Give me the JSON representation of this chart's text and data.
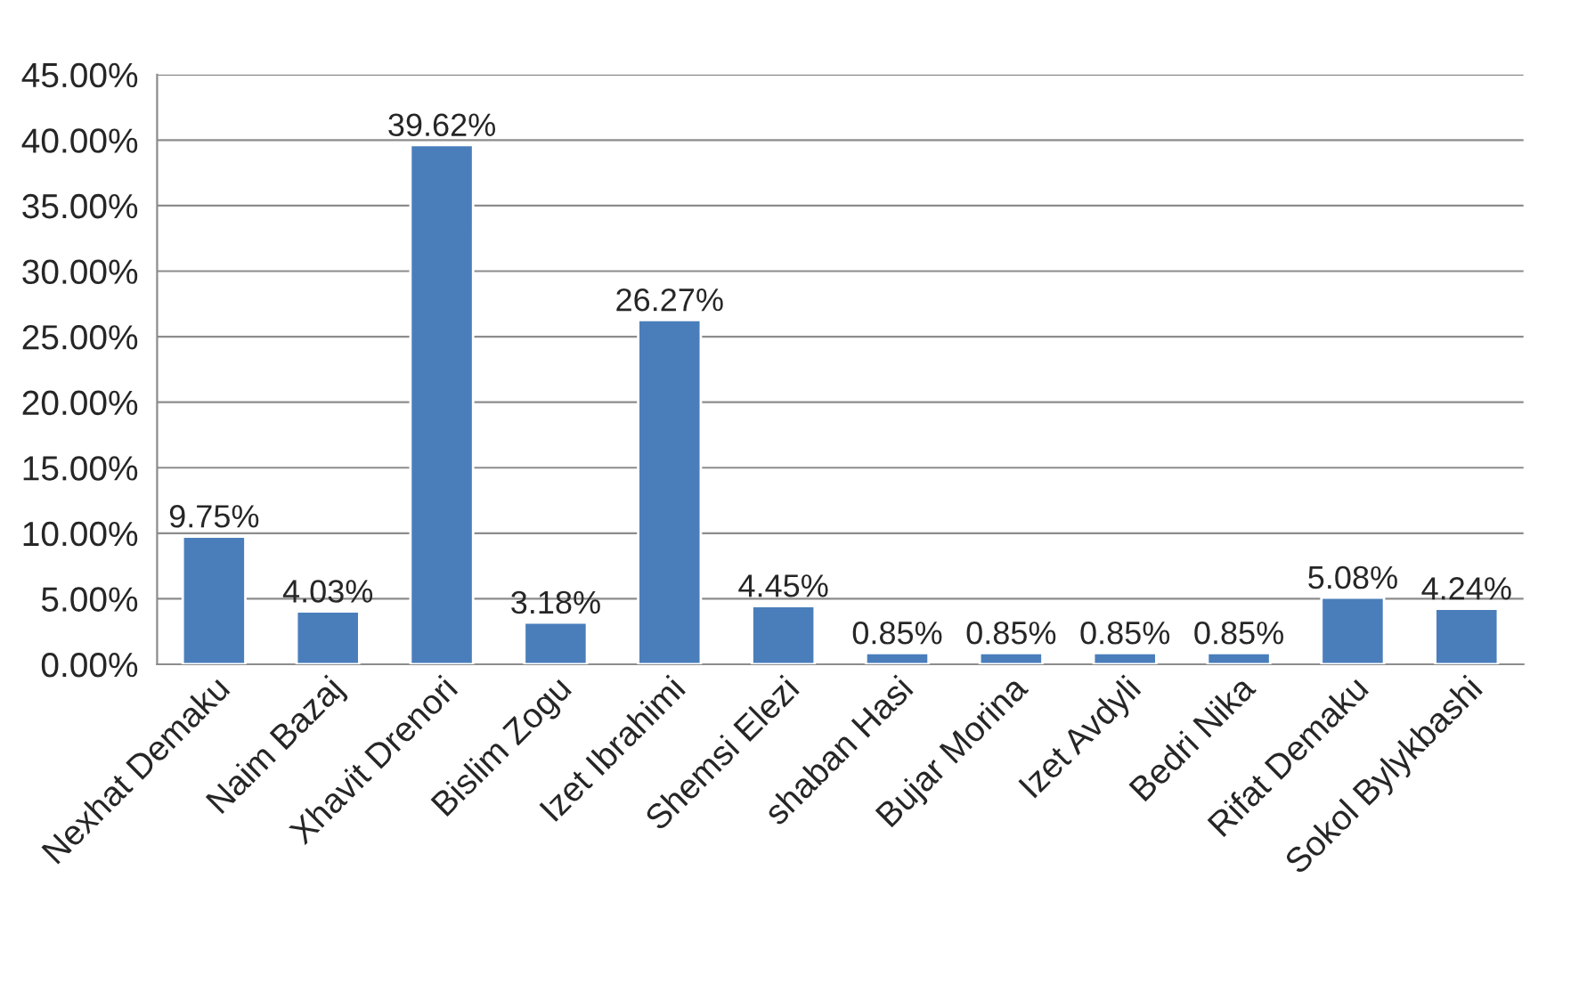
{
  "chart_data": {
    "type": "bar",
    "categories": [
      "Nexhat Demaku",
      "Naim Bazaj",
      "Xhavit Drenori",
      "Bislim Zogu",
      "Izet Ibrahimi",
      "Shemsi Elezi",
      "shaban Hasi",
      "Bujar Morina",
      "Izet Avdyli",
      "Bedri Nika",
      "Rifat Demaku",
      "Sokol Bylykbashi"
    ],
    "values": [
      9.75,
      4.03,
      39.62,
      3.18,
      26.27,
      4.45,
      0.85,
      0.85,
      0.85,
      0.85,
      5.08,
      4.24
    ],
    "value_labels": [
      "9.75%",
      "4.03%",
      "39.62%",
      "3.18%",
      "26.27%",
      "4.45%",
      "0.85%",
      "0.85%",
      "0.85%",
      "0.85%",
      "5.08%",
      "4.24%"
    ],
    "color": "#4a7ebb",
    "ylim": [
      0,
      45
    ],
    "yticks": [
      {
        "value": 0,
        "label": "0.00%"
      },
      {
        "value": 5,
        "label": "5.00%"
      },
      {
        "value": 10,
        "label": "10.00%"
      },
      {
        "value": 15,
        "label": "15.00%"
      },
      {
        "value": 20,
        "label": "20.00%"
      },
      {
        "value": 25,
        "label": "25.00%"
      },
      {
        "value": 30,
        "label": "30.00%"
      },
      {
        "value": 35,
        "label": "35.00%"
      },
      {
        "value": 40,
        "label": "40.00%"
      },
      {
        "value": 45,
        "label": "45.00%"
      }
    ],
    "grid": "y",
    "legend": false
  }
}
